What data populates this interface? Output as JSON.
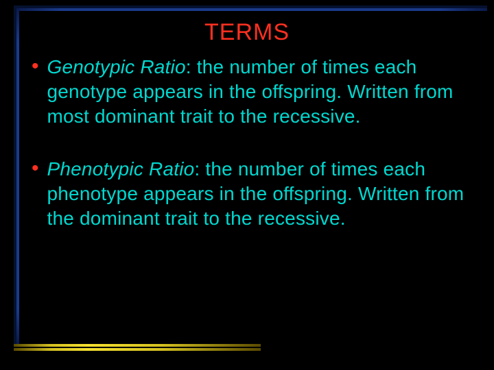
{
  "colors": {
    "background": "#000000",
    "title_color": "#ff3020",
    "body_color": "#00d8d0",
    "bullet_color": "#ff3020",
    "frame_blue": "#1a3a8a",
    "frame_yellow": "#f5e030"
  },
  "typography": {
    "title_fontsize": 34,
    "body_fontsize": 28,
    "font_family": "Verdana"
  },
  "title": "TERMS",
  "bullets": [
    {
      "term": "Genotypic Ratio",
      "definition": ": the number of times each genotype appears in the offspring. Written from most dominant trait to the recessive."
    },
    {
      "term": "Phenotypic Ratio",
      "definition": ": the number of times each phenotype appears in the offspring. Written from the dominant trait to the recessive."
    }
  ]
}
